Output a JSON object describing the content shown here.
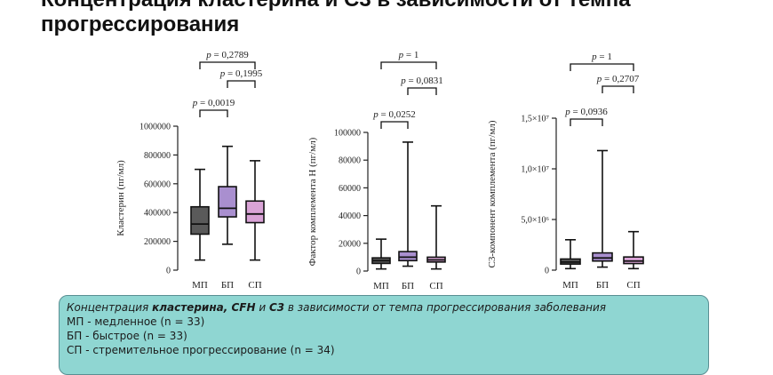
{
  "slide": {
    "title_line1": "Концентрация кластерина и C3 в зависимости от темпа",
    "title_line2": "прогрессирования"
  },
  "caption": {
    "lead": "Концентрация ",
    "bold1": "кластерина, CFH",
    "mid": " и ",
    "bold2": "C3",
    "tail": " в зависимости от темпа прогрессирования заболевания",
    "legend": [
      "МП - медленное (n = 33)",
      "БП - быстрое (n = 33)",
      "СП - стремительное прогрессирование (n = 34)"
    ]
  },
  "colors": {
    "МП": "#5a5a5a",
    "БП": "#a98fcf",
    "СП": "#d9a3d6",
    "caption_bg": "#8fd6d2"
  },
  "chart_data": [
    {
      "type": "box",
      "ylabel": "Кластерин (пг/мл)",
      "categories": [
        "МП",
        "БП",
        "СП"
      ],
      "ylim": [
        0,
        1000000
      ],
      "yticks": [
        0,
        200000,
        400000,
        600000,
        800000,
        1000000
      ],
      "ytick_labels": [
        "0",
        "200000",
        "400000",
        "600000",
        "800000",
        "1000000"
      ],
      "series": [
        {
          "category": "МП",
          "min": 70000,
          "q1": 250000,
          "median": 320000,
          "q3": 440000,
          "max": 700000
        },
        {
          "category": "БП",
          "min": 180000,
          "q1": 370000,
          "median": 430000,
          "q3": 580000,
          "max": 860000
        },
        {
          "category": "СП",
          "min": 70000,
          "q1": 330000,
          "median": 390000,
          "q3": 480000,
          "max": 760000
        }
      ],
      "comparisons": [
        {
          "from": "МП",
          "to": "БП",
          "label": "p = 0,0019"
        },
        {
          "from": "БП",
          "to": "СП",
          "label": "p = 0,1995"
        },
        {
          "from": "МП",
          "to": "СП",
          "label": "p = 0,2789"
        }
      ]
    },
    {
      "type": "box",
      "ylabel": "Фактор комплемента Н (пг/мл)",
      "categories": [
        "МП",
        "БП",
        "СП"
      ],
      "ylim": [
        0,
        100000
      ],
      "yticks": [
        0,
        20000,
        40000,
        60000,
        80000,
        100000
      ],
      "ytick_labels": [
        "0",
        "20000",
        "40000",
        "60000",
        "80000",
        "100000"
      ],
      "series": [
        {
          "category": "МП",
          "min": 1500,
          "q1": 5500,
          "median": 7500,
          "q3": 9500,
          "max": 23000
        },
        {
          "category": "БП",
          "min": 3500,
          "q1": 7500,
          "median": 10000,
          "q3": 14000,
          "max": 93000
        },
        {
          "category": "СП",
          "min": 1500,
          "q1": 6500,
          "median": 8000,
          "q3": 10000,
          "max": 47000
        }
      ],
      "comparisons": [
        {
          "from": "МП",
          "to": "БП",
          "label": "p = 0,0252"
        },
        {
          "from": "БП",
          "to": "СП",
          "label": "p = 0,0831"
        },
        {
          "from": "МП",
          "to": "СП",
          "label": "p = 1"
        }
      ]
    },
    {
      "type": "box",
      "ylabel": "С3-компонент комплемента (пг/мл)",
      "categories": [
        "МП",
        "БП",
        "СП"
      ],
      "ylim": [
        0,
        15000000
      ],
      "yticks": [
        0,
        5000000,
        10000000,
        15000000
      ],
      "ytick_labels": [
        "0",
        "5,0×10⁶",
        "1,0×10⁷",
        "1,5×10⁷"
      ],
      "series": [
        {
          "category": "МП",
          "min": 150000,
          "q1": 600000,
          "median": 800000,
          "q3": 1100000,
          "max": 3000000
        },
        {
          "category": "БП",
          "min": 300000,
          "q1": 900000,
          "median": 1200000,
          "q3": 1700000,
          "max": 11800000
        },
        {
          "category": "СП",
          "min": 150000,
          "q1": 650000,
          "median": 900000,
          "q3": 1300000,
          "max": 3800000
        }
      ],
      "comparisons": [
        {
          "from": "МП",
          "to": "БП",
          "label": "p = 0,0936"
        },
        {
          "from": "БП",
          "to": "СП",
          "label": "p = 0,2707"
        },
        {
          "from": "МП",
          "to": "СП",
          "label": "p = 1"
        }
      ]
    }
  ]
}
